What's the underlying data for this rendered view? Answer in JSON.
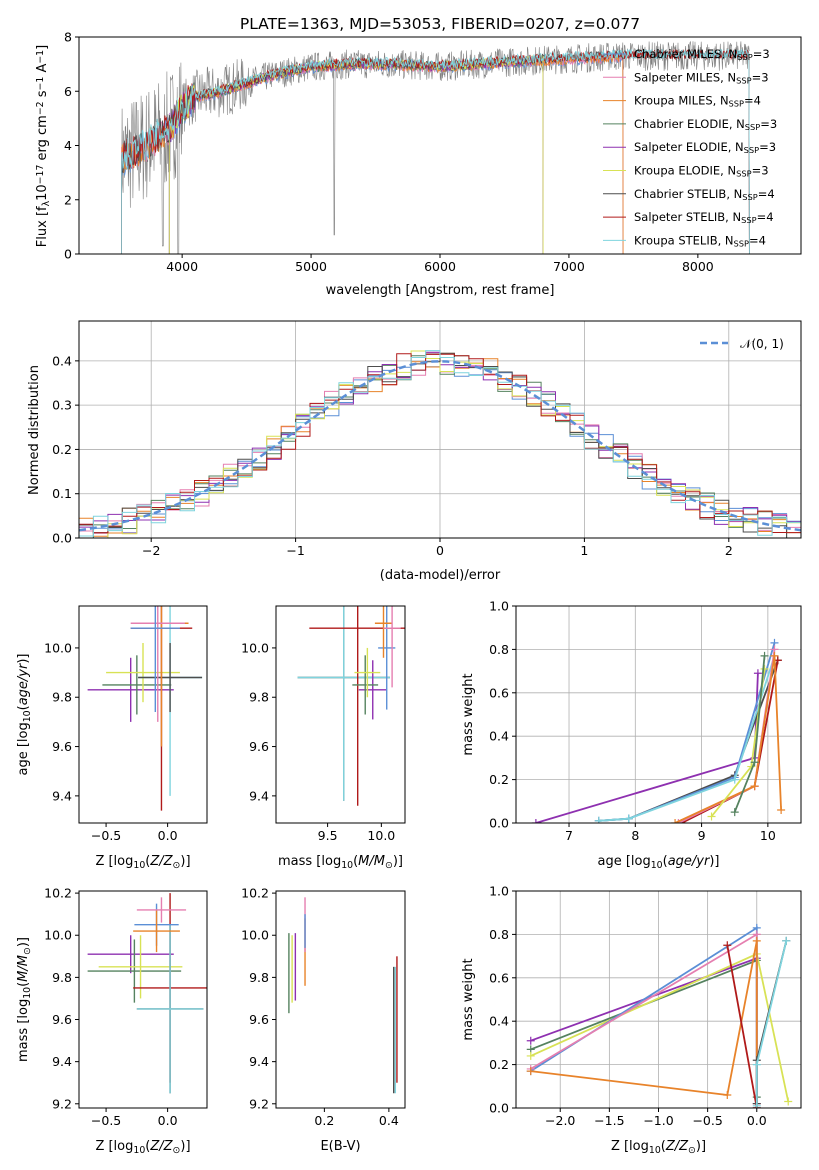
{
  "title": "PLATE=1363, MJD=53053, FIBERID=0207, z=0.077",
  "colors": {
    "Chabrier MILES": "#5b8fd6",
    "Salpeter MILES": "#e57fb0",
    "Kroupa MILES": "#e8832a",
    "Chabrier ELODIE": "#55825f",
    "Salpeter ELODIE": "#8e30b0",
    "Kroupa ELODIE": "#d8e255",
    "Chabrier STELIB": "#4d4d4d",
    "Salpeter STELIB": "#b01a1a",
    "Kroupa STELIB": "#7fd4de",
    "data": "#808080",
    "normal": "#5b8fd6"
  },
  "chart_data": [
    {
      "id": "spectrum",
      "type": "line",
      "title": "PLATE=1363, MJD=53053, FIBERID=0207, z=0.077",
      "xlabel": "wavelength [Angstrom, rest frame]",
      "ylabel": "Flux [f_λ 10^-17 erg cm^-2 s^-1 A^-1]",
      "xlim": [
        3200,
        8800
      ],
      "ylim": [
        0,
        8
      ],
      "xticks": [
        4000,
        5000,
        6000,
        7000,
        8000
      ],
      "yticks": [
        0,
        2,
        4,
        6,
        8
      ],
      "legend": "top-right",
      "legend_entries": [
        {
          "series": "Chabrier MILES",
          "label": "Chabrier MILES, N",
          "sub": "SSP",
          "suffix": "=3"
        },
        {
          "series": "Salpeter MILES",
          "label": "Salpeter MILES, N",
          "sub": "SSP",
          "suffix": "=3"
        },
        {
          "series": "Kroupa MILES",
          "label": "Kroupa MILES, N",
          "sub": "SSP",
          "suffix": "=4"
        },
        {
          "series": "Chabrier ELODIE",
          "label": "Chabrier ELODIE, N",
          "sub": "SSP",
          "suffix": "=3"
        },
        {
          "series": "Salpeter ELODIE",
          "label": "Salpeter ELODIE, N",
          "sub": "SSP",
          "suffix": "=3"
        },
        {
          "series": "Kroupa ELODIE",
          "label": "Kroupa ELODIE, N",
          "sub": "SSP",
          "suffix": "=3"
        },
        {
          "series": "Chabrier STELIB",
          "label": "Chabrier STELIB, N",
          "sub": "SSP",
          "suffix": "=4"
        },
        {
          "series": "Salpeter STELIB",
          "label": "Salpeter STELIB, N",
          "sub": "SSP",
          "suffix": "=4"
        },
        {
          "series": "Kroupa STELIB",
          "label": "Kroupa STELIB, N",
          "sub": "SSP",
          "suffix": "=4"
        }
      ],
      "continuum": {
        "x": [
          3530,
          3650,
          3800,
          3900,
          4000,
          4100,
          4300,
          4500,
          4700,
          5000,
          5300,
          5600,
          6000,
          6300,
          6600,
          7000,
          7400,
          7800,
          8000,
          8400
        ],
        "y": [
          3.5,
          3.8,
          4.3,
          4.6,
          5.4,
          5.8,
          6.0,
          6.3,
          6.6,
          6.9,
          7.0,
          7.0,
          6.9,
          7.0,
          7.1,
          7.2,
          7.3,
          7.3,
          7.3,
          7.3
        ]
      }
    },
    {
      "id": "residuals",
      "type": "line",
      "xlabel": "(data-model)/error",
      "ylabel": "Normed distribution",
      "xlim": [
        -2.5,
        2.5
      ],
      "ylim": [
        0,
        0.49
      ],
      "xticks": [
        -2,
        -1,
        0,
        1,
        2
      ],
      "yticks": [
        0.0,
        0.1,
        0.2,
        0.3,
        0.4
      ],
      "grid": true,
      "legend": "top-right",
      "legend_label": "N(0,1)",
      "hist_bin_width": 0.1,
      "hist_x_start": -2.5
    },
    {
      "id": "z-age",
      "type": "scatter",
      "xlabel": "Z [log10(Z/Z☉)]",
      "ylabel": "age  [log10(age/yr)]",
      "xlim": [
        -0.72,
        0.32
      ],
      "ylim": [
        9.29,
        10.17
      ],
      "xticks": [
        -0.5,
        0.0
      ],
      "yticks": [
        9.4,
        9.6,
        9.8,
        10.0
      ],
      "points": [
        {
          "series": "Salpeter ELODIE",
          "x": -0.3,
          "xerr": 0.35,
          "y": 9.83,
          "yerr": 0.13
        },
        {
          "series": "Chabrier ELODIE",
          "x": -0.25,
          "xerr": 0.28,
          "y": 9.85,
          "yerr": 0.12
        },
        {
          "series": "Kroupa ELODIE",
          "x": -0.2,
          "xerr": 0.3,
          "y": 9.9,
          "yerr": 0.12
        },
        {
          "series": "Kroupa STELIB",
          "x": 0.02,
          "xerr": 0.26,
          "y": 9.88,
          "yerr": 0.48
        },
        {
          "series": "Chabrier STELIB",
          "x": 0.02,
          "xerr": 0.26,
          "y": 9.88,
          "yerr": 0.14
        },
        {
          "series": "Salpeter STELIB",
          "x": -0.05,
          "xerr": 0.25,
          "y": 10.08,
          "yerr": 0.74
        },
        {
          "series": "Kroupa MILES",
          "x": -0.05,
          "xerr": 0.22,
          "y": 10.1,
          "yerr": 0.5
        },
        {
          "series": "Salpeter MILES",
          "x": -0.08,
          "xerr": 0.22,
          "y": 10.1,
          "yerr": 0.4
        },
        {
          "series": "Chabrier MILES",
          "x": -0.1,
          "xerr": 0.2,
          "y": 10.08,
          "yerr": 0.34
        }
      ]
    },
    {
      "id": "mass-age",
      "type": "scatter",
      "xlabel": "mass [log10(M/M☉)]",
      "ylabel": "",
      "xlim": [
        9.02,
        10.22
      ],
      "ylim": [
        9.29,
        10.17
      ],
      "xticks": [
        9.5,
        10.0
      ],
      "yticks": [
        9.4,
        9.6,
        9.8,
        10.0
      ],
      "points": [
        {
          "series": "Chabrier STELIB",
          "x": 9.65,
          "xerr": 0.43,
          "y": 9.88,
          "yerr": 0.5
        },
        {
          "series": "Kroupa STELIB",
          "x": 9.65,
          "xerr": 0.43,
          "y": 9.88,
          "yerr": 0.5
        },
        {
          "series": "Salpeter STELIB",
          "x": 9.78,
          "xerr": 0.45,
          "y": 10.08,
          "yerr": 0.72
        },
        {
          "series": "Salpeter ELODIE",
          "x": 9.92,
          "xerr": 0.13,
          "y": 9.83,
          "yerr": 0.12
        },
        {
          "series": "Chabrier ELODIE",
          "x": 9.85,
          "xerr": 0.12,
          "y": 9.85,
          "yerr": 0.12
        },
        {
          "series": "Kroupa ELODIE",
          "x": 9.87,
          "xerr": 0.12,
          "y": 9.9,
          "yerr": 0.1
        },
        {
          "series": "Chabrier MILES",
          "x": 10.05,
          "xerr": 0.08,
          "y": 10.0,
          "yerr": 0.25
        },
        {
          "series": "Kroupa MILES",
          "x": 10.02,
          "xerr": 0.08,
          "y": 10.1,
          "yerr": 0.14
        },
        {
          "series": "Salpeter MILES",
          "x": 10.1,
          "xerr": 0.08,
          "y": 10.08,
          "yerr": 0.24
        }
      ]
    },
    {
      "id": "age-weight",
      "type": "line",
      "xlabel": "age  [log10(age/yr)]",
      "ylabel": "mass weight",
      "xlim": [
        6.2,
        10.5
      ],
      "ylim": [
        0,
        1
      ],
      "xticks": [
        7,
        8,
        9,
        10
      ],
      "yticks": [
        0.0,
        0.2,
        0.4,
        0.6,
        0.8,
        1.0
      ],
      "grid": true,
      "series": [
        {
          "name": "Salpeter ELODIE",
          "x": [
            6.5,
            9.8,
            9.85
          ],
          "y": [
            0.0,
            0.3,
            0.69
          ]
        },
        {
          "name": "Chabrier STELIB",
          "x": [
            7.45,
            7.9,
            9.5,
            10.15
          ],
          "y": [
            0.01,
            0.02,
            0.22,
            0.75
          ]
        },
        {
          "name": "Chabrier MILES",
          "x": [
            7.45,
            7.9,
            9.5,
            10.1
          ],
          "y": [
            0.01,
            0.02,
            0.21,
            0.83
          ]
        },
        {
          "name": "Kroupa STELIB",
          "x": [
            7.45,
            7.9,
            9.5,
            10.1
          ],
          "y": [
            0.01,
            0.02,
            0.2,
            0.77
          ]
        },
        {
          "name": "Salpeter STELIB",
          "x": [
            8.7,
            9.8,
            10.15
          ],
          "y": [
            0.0,
            0.17,
            0.75
          ]
        },
        {
          "name": "Salpeter MILES",
          "x": [
            8.65,
            9.8,
            10.1
          ],
          "y": [
            0.0,
            0.17,
            0.8
          ]
        },
        {
          "name": "Kroupa MILES",
          "x": [
            8.6,
            9.8,
            10.1,
            10.2
          ],
          "y": [
            0.0,
            0.17,
            0.77,
            0.06
          ]
        },
        {
          "name": "Kroupa ELODIE",
          "x": [
            9.15,
            9.75,
            9.95
          ],
          "y": [
            0.03,
            0.26,
            0.71
          ]
        },
        {
          "name": "Chabrier ELODIE",
          "x": [
            9.5,
            9.8,
            9.95
          ],
          "y": [
            0.05,
            0.28,
            0.77
          ]
        }
      ]
    },
    {
      "id": "z-mass",
      "type": "scatter",
      "xlabel": "Z [log10(Z/Z☉)]",
      "ylabel": "mass [log10(M/M☉)]",
      "xlim": [
        -0.72,
        0.32
      ],
      "ylim": [
        9.18,
        10.21
      ],
      "xticks": [
        -0.5,
        0.0
      ],
      "yticks": [
        9.2,
        9.4,
        9.6,
        9.8,
        10.0,
        10.2
      ],
      "points": [
        {
          "series": "Salpeter ELODIE",
          "x": -0.3,
          "xerr": 0.35,
          "y": 9.91,
          "yerr": 0.09
        },
        {
          "series": "Chabrier ELODIE",
          "x": -0.27,
          "xerr": 0.38,
          "y": 9.83,
          "yerr": 0.15
        },
        {
          "series": "Kroupa ELODIE",
          "x": -0.22,
          "xerr": 0.34,
          "y": 9.85,
          "yerr": 0.15
        },
        {
          "series": "Salpeter STELIB",
          "x": 0.02,
          "xerr": 0.3,
          "y": 9.75,
          "yerr": 0.45
        },
        {
          "series": "Chabrier STELIB",
          "x": 0.02,
          "xerr": 0.27,
          "y": 9.65,
          "yerr": 0.4
        },
        {
          "series": "Kroupa STELIB",
          "x": 0.02,
          "xerr": 0.27,
          "y": 9.65,
          "yerr": 0.4
        },
        {
          "series": "Chabrier MILES",
          "x": -0.09,
          "xerr": 0.18,
          "y": 10.05,
          "yerr": 0.1
        },
        {
          "series": "Kroupa MILES",
          "x": -0.09,
          "xerr": 0.19,
          "y": 10.02,
          "yerr": 0.1
        },
        {
          "series": "Salpeter MILES",
          "x": -0.05,
          "xerr": 0.2,
          "y": 10.12,
          "yerr": 0.06
        }
      ]
    },
    {
      "id": "ebv-mass",
      "type": "scatter",
      "xlabel": "E(B-V)",
      "ylabel": "",
      "xlim": [
        0.05,
        0.45
      ],
      "ylim": [
        9.18,
        10.21
      ],
      "xticks": [
        0.2,
        0.4
      ],
      "yticks": [
        9.2,
        9.4,
        9.6,
        9.8,
        10.0,
        10.2
      ],
      "points": [
        {
          "series": "Chabrier ELODIE",
          "x": 0.09,
          "y": 9.82,
          "yerr": 0.19
        },
        {
          "series": "Kroupa ELODIE",
          "x": 0.1,
          "y": 9.84,
          "yerr": 0.16
        },
        {
          "series": "Salpeter ELODIE",
          "x": 0.11,
          "y": 9.85,
          "yerr": 0.16
        },
        {
          "series": "Kroupa MILES",
          "x": 0.14,
          "y": 9.92,
          "yerr": 0.16
        },
        {
          "series": "Salpeter MILES",
          "x": 0.14,
          "y": 10.05,
          "yerr": 0.13
        },
        {
          "series": "Chabrier MILES",
          "x": 0.14,
          "y": 10.02,
          "yerr": 0.08
        },
        {
          "series": "Chabrier STELIB",
          "x": 0.415,
          "y": 9.55,
          "yerr": 0.3
        },
        {
          "series": "Kroupa STELIB",
          "x": 0.42,
          "y": 9.55,
          "yerr": 0.3
        },
        {
          "series": "Salpeter STELIB",
          "x": 0.425,
          "y": 9.6,
          "yerr": 0.3
        }
      ]
    },
    {
      "id": "z-weight",
      "type": "line",
      "xlabel": "Z [log10(Z/Z☉)]",
      "ylabel": "mass weight",
      "xlim": [
        -2.45,
        0.45
      ],
      "ylim": [
        0,
        1
      ],
      "xticks": [
        -2.0,
        -1.5,
        -1.0,
        -0.5,
        0.0
      ],
      "yticks": [
        0.0,
        0.2,
        0.4,
        0.6,
        0.8,
        1.0
      ],
      "grid": true,
      "series": [
        {
          "name": "Salpeter ELODIE",
          "x": [
            -2.3,
            0.0,
            0.0
          ],
          "y": [
            0.31,
            0.69,
            0.0
          ]
        },
        {
          "name": "Chabrier ELODIE",
          "x": [
            -2.3,
            0.0,
            0.0
          ],
          "y": [
            0.27,
            0.68,
            0.05
          ]
        },
        {
          "name": "Kroupa ELODIE",
          "x": [
            -2.3,
            0.0,
            0.32
          ],
          "y": [
            0.24,
            0.71,
            0.03
          ]
        },
        {
          "name": "Chabrier MILES",
          "x": [
            -2.3,
            0.0,
            0.0
          ],
          "y": [
            0.17,
            0.83,
            0.0
          ]
        },
        {
          "name": "Salpeter MILES",
          "x": [
            -2.3,
            0.0,
            0.0
          ],
          "y": [
            0.18,
            0.8,
            0.02
          ]
        },
        {
          "name": "Kroupa MILES",
          "x": [
            -2.3,
            -0.3,
            0.0,
            0.0
          ],
          "y": [
            0.17,
            0.06,
            0.77,
            0.0
          ]
        },
        {
          "name": "Salpeter STELIB",
          "x": [
            -0.3,
            0.0,
            0.0
          ],
          "y": [
            0.75,
            0.0,
            0.0
          ]
        },
        {
          "name": "Chabrier STELIB",
          "x": [
            0.0,
            0.0,
            0.3
          ],
          "y": [
            0.02,
            0.22,
            0.77
          ]
        },
        {
          "name": "Kroupa STELIB",
          "x": [
            0.0,
            0.0,
            0.3
          ],
          "y": [
            0.01,
            0.2,
            0.77
          ]
        }
      ]
    }
  ]
}
